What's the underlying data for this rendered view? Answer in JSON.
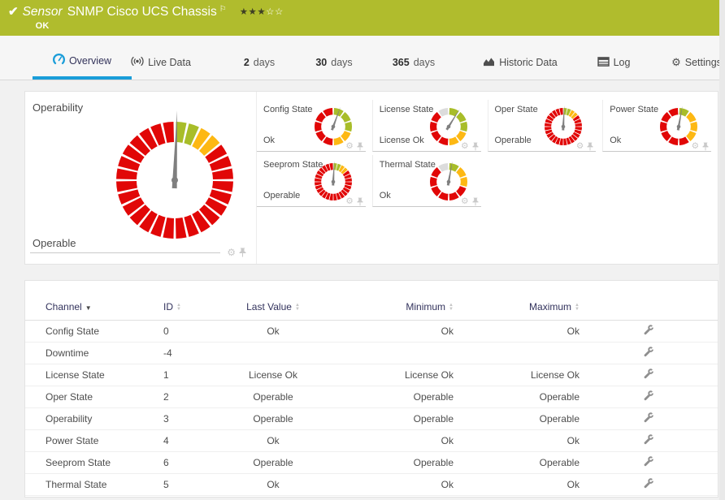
{
  "header": {
    "kind_label": "Sensor",
    "title": "SNMP Cisco UCS Chassis",
    "status": "OK",
    "rating": {
      "filled": 3,
      "total": 5
    }
  },
  "tabs": [
    {
      "id": "overview",
      "icon": "gauge-icon",
      "label": "Overview",
      "active": true
    },
    {
      "id": "live-data",
      "icon": "live-icon",
      "label": "Live Data"
    },
    {
      "id": "2-days",
      "prefix": "2",
      "label": "days"
    },
    {
      "id": "30-days",
      "prefix": "30",
      "label": "days"
    },
    {
      "id": "365-days",
      "prefix": "365",
      "label": "days"
    },
    {
      "id": "historic-data",
      "icon": "chart-icon",
      "label": "Historic Data"
    },
    {
      "id": "log",
      "icon": "log-icon",
      "label": "Log"
    },
    {
      "id": "settings",
      "icon": "gear-icon",
      "label": "Settings"
    }
  ],
  "gauges": {
    "main": {
      "label": "Operability",
      "value": "Operable",
      "style": "fine",
      "needle_deg": 2,
      "segments": [
        {
          "color": "green",
          "count": 2
        },
        {
          "color": "amber",
          "count": 2
        },
        {
          "color": "red",
          "count": 24
        }
      ]
    },
    "small": [
      {
        "label": "Config State",
        "value": "Ok",
        "style": "coarse",
        "needle_deg": 20,
        "segments": [
          {
            "color": "green",
            "count": 3
          },
          {
            "color": "amber",
            "count": 2
          },
          {
            "color": "red",
            "count": 5
          }
        ]
      },
      {
        "label": "License State",
        "value": "License Ok",
        "style": "coarse",
        "needle_deg": 32,
        "segments": [
          {
            "color": "green",
            "count": 3
          },
          {
            "color": "amber",
            "count": 2
          },
          {
            "color": "red",
            "count": 4
          },
          {
            "color": "gray",
            "count": 1
          }
        ]
      },
      {
        "label": "Oper State",
        "value": "Operable",
        "style": "fine",
        "needle_deg": 3,
        "segments": [
          {
            "color": "green",
            "count": 2
          },
          {
            "color": "amber",
            "count": 2
          },
          {
            "color": "red",
            "count": 24
          }
        ]
      },
      {
        "label": "Power State",
        "value": "Ok",
        "style": "coarse",
        "needle_deg": 10,
        "segments": [
          {
            "color": "green",
            "count": 1
          },
          {
            "color": "amber",
            "count": 3
          },
          {
            "color": "red",
            "count": 6
          }
        ]
      },
      {
        "label": "Seeprom State",
        "value": "Operable",
        "style": "fine",
        "needle_deg": 3,
        "segments": [
          {
            "color": "green",
            "count": 2
          },
          {
            "color": "amber",
            "count": 2
          },
          {
            "color": "red",
            "count": 24
          }
        ]
      },
      {
        "label": "Thermal State",
        "value": "Ok",
        "style": "coarse",
        "needle_deg": 10,
        "segments": [
          {
            "color": "green",
            "count": 1
          },
          {
            "color": "amber",
            "count": 2
          },
          {
            "color": "red",
            "count": 6
          },
          {
            "color": "gray",
            "count": 1
          }
        ]
      }
    ]
  },
  "table": {
    "columns": [
      {
        "key": "channel",
        "label": "Channel",
        "sorted": true
      },
      {
        "key": "id",
        "label": "ID",
        "sortable": true
      },
      {
        "key": "last_value",
        "label": "Last Value",
        "sortable": true
      },
      {
        "key": "minimum",
        "label": "Minimum",
        "sortable": true
      },
      {
        "key": "maximum",
        "label": "Maximum",
        "sortable": true
      },
      {
        "key": "settings",
        "label": ""
      }
    ],
    "rows": [
      {
        "channel": "Config State",
        "id": "0",
        "last_value": "Ok",
        "minimum": "Ok",
        "maximum": "Ok"
      },
      {
        "channel": "Downtime",
        "id": "-4",
        "last_value": "",
        "minimum": "",
        "maximum": ""
      },
      {
        "channel": "License State",
        "id": "1",
        "last_value": "License Ok",
        "minimum": "License Ok",
        "maximum": "License Ok"
      },
      {
        "channel": "Oper State",
        "id": "2",
        "last_value": "Operable",
        "minimum": "Operable",
        "maximum": "Operable"
      },
      {
        "channel": "Operability",
        "id": "3",
        "last_value": "Operable",
        "minimum": "Operable",
        "maximum": "Operable"
      },
      {
        "channel": "Power State",
        "id": "4",
        "last_value": "Ok",
        "minimum": "Ok",
        "maximum": "Ok"
      },
      {
        "channel": "Seeprom State",
        "id": "6",
        "last_value": "Operable",
        "minimum": "Operable",
        "maximum": "Operable"
      },
      {
        "channel": "Thermal State",
        "id": "5",
        "last_value": "Ok",
        "minimum": "Ok",
        "maximum": "Ok"
      }
    ]
  },
  "colors": {
    "status_ok_bg": "#b0bc2d",
    "accent_blue": "#1a9dd9",
    "gauge_green": "#a8bd29",
    "gauge_amber": "#fdb813",
    "gauge_red": "#e10707",
    "gauge_gray": "#dcdcdc",
    "needle_gray": "#7f7f7f"
  }
}
